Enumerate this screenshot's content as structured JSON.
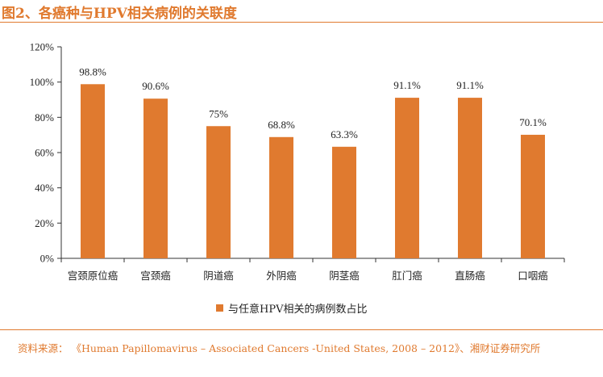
{
  "title": "图2、各癌种与HPV相关病例的关联度",
  "source": "资料来源：  《Human Papillomavirus – Associated Cancers -United States, 2008 – 2012》、湘财证券研究所",
  "colors": {
    "accent": "#e07a2f",
    "bar": "#e07a2f",
    "axis": "#333333"
  },
  "chart_data": {
    "type": "bar",
    "categories": [
      "宫颈原位癌",
      "宫颈癌",
      "阴道癌",
      "外阴癌",
      "阴茎癌",
      "肛门癌",
      "直肠癌",
      "口咽癌"
    ],
    "series": [
      {
        "name": "与任意HPV相关的病例数占比",
        "values": [
          98.8,
          90.6,
          75,
          68.8,
          63.3,
          91.1,
          91.1,
          70.1
        ],
        "labels": [
          "98.8%",
          "90.6%",
          "75%",
          "68.8%",
          "63.3%",
          "91.1%",
          "91.1%",
          "70.1%"
        ]
      }
    ],
    "y_ticks": [
      "0%",
      "20%",
      "40%",
      "60%",
      "80%",
      "100%",
      "120%"
    ],
    "ylim": [
      0,
      120
    ],
    "grid": false,
    "legend_position": "bottom"
  }
}
